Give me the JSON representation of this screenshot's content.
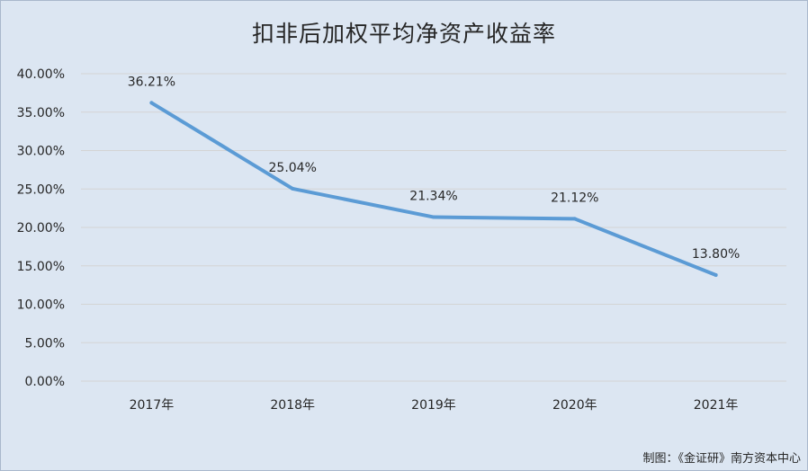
{
  "title": "扣非后加权平均净资产收益率",
  "credit": "制图：《金证研》南方资本中心",
  "colors": {
    "background": "#dce6f2",
    "line": "#5b9bd5",
    "grid": "#d4d4d4",
    "text": "#262626"
  },
  "chart_data": {
    "type": "line",
    "title": "扣非后加权平均净资产收益率",
    "categories": [
      "2017年",
      "2018年",
      "2019年",
      "2020年",
      "2021年"
    ],
    "series": [
      {
        "values": [
          36.21,
          25.04,
          21.34,
          21.12,
          13.8
        ],
        "data_labels": [
          "36.21%",
          "25.04%",
          "21.34%",
          "21.12%",
          "13.80%"
        ]
      }
    ],
    "y_ticks": [
      "0.00%",
      "5.00%",
      "10.00%",
      "15.00%",
      "20.00%",
      "25.00%",
      "30.00%",
      "35.00%",
      "40.00%"
    ],
    "ylim": [
      0,
      40
    ],
    "ytick_step": 5,
    "grid": true,
    "legend": "none"
  }
}
